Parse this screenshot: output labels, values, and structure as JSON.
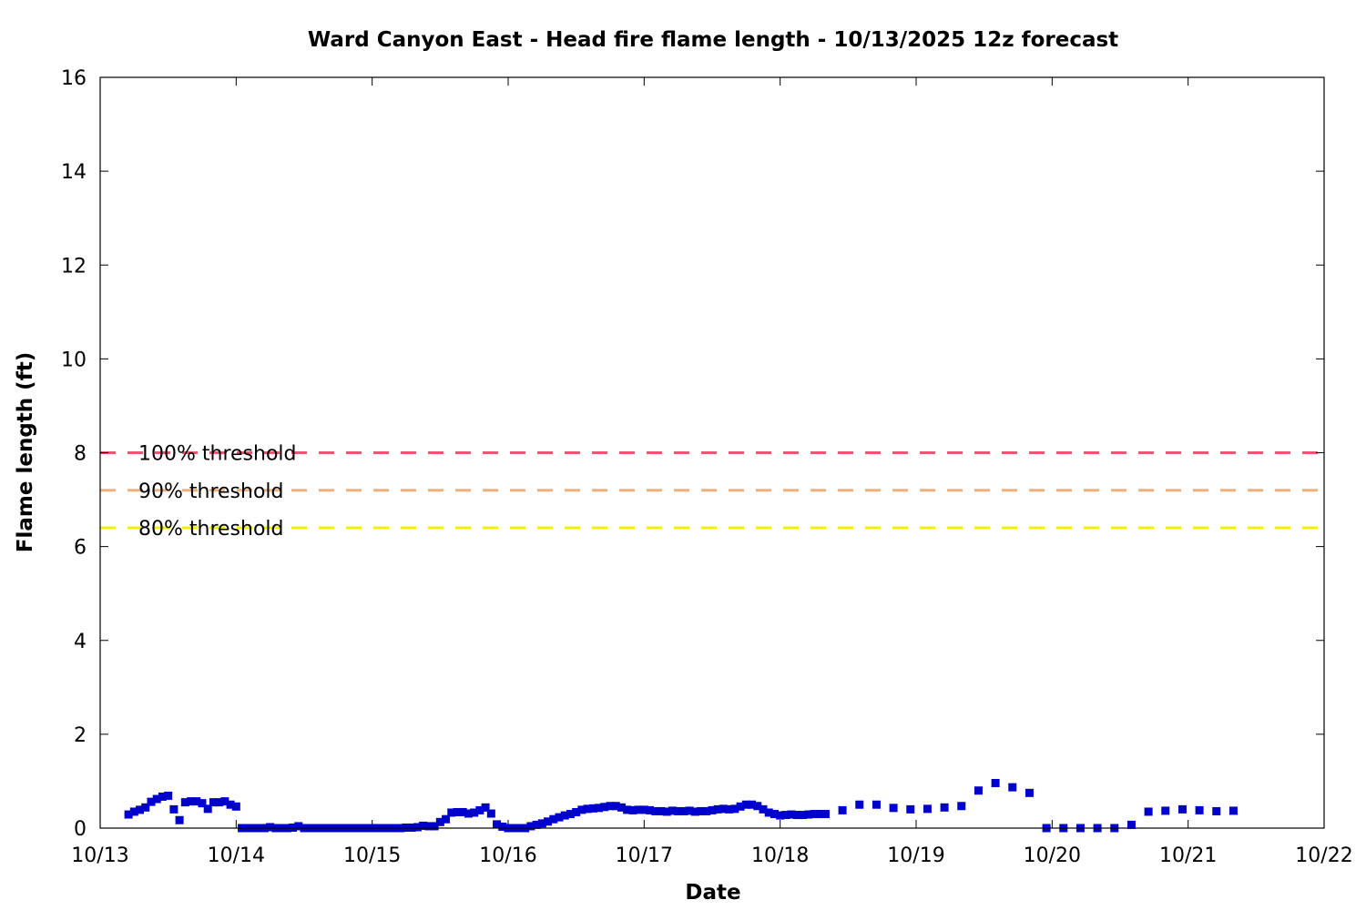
{
  "chart_data": {
    "type": "scatter",
    "title": "Ward Canyon East - Head fire flame length - 10/13/2025 12z forecast",
    "xlabel": "Date",
    "ylabel": "Flame length (ft)",
    "xlim": [
      "10/13",
      "10/22"
    ],
    "ylim": [
      0,
      16
    ],
    "x_ticks": [
      "10/13",
      "10/14",
      "10/15",
      "10/16",
      "10/17",
      "10/18",
      "10/19",
      "10/20",
      "10/21",
      "10/22"
    ],
    "y_ticks": [
      0,
      2,
      4,
      6,
      8,
      10,
      12,
      14,
      16
    ],
    "grid": false,
    "thresholds": [
      {
        "label": "100% threshold",
        "value": 8.0,
        "color": "#e05b73"
      },
      {
        "label": "90% threshold",
        "value": 7.2,
        "color": "#f0b07a"
      },
      {
        "label": "80% threshold",
        "value": 6.4,
        "color": "#f0f000"
      }
    ],
    "series": [
      {
        "color": "#0000cc",
        "marker": "square",
        "points": [
          [
            "10/13 05:00",
            0.29
          ],
          [
            "10/13 06:00",
            0.35
          ],
          [
            "10/13 07:00",
            0.39
          ],
          [
            "10/13 08:00",
            0.44
          ],
          [
            "10/13 09:00",
            0.56
          ],
          [
            "10/13 10:00",
            0.62
          ],
          [
            "10/13 11:00",
            0.67
          ],
          [
            "10/13 12:00",
            0.69
          ],
          [
            "10/13 13:00",
            0.4
          ],
          [
            "10/13 14:00",
            0.17
          ],
          [
            "10/13 15:00",
            0.55
          ],
          [
            "10/13 16:00",
            0.57
          ],
          [
            "10/13 17:00",
            0.57
          ],
          [
            "10/13 18:00",
            0.53
          ],
          [
            "10/13 19:00",
            0.41
          ],
          [
            "10/13 20:00",
            0.55
          ],
          [
            "10/13 21:00",
            0.55
          ],
          [
            "10/13 22:00",
            0.57
          ],
          [
            "10/13 23:00",
            0.5
          ],
          [
            "10/14 00:00",
            0.46
          ],
          [
            "10/14 01:00",
            0.0
          ],
          [
            "10/14 02:00",
            0.0
          ],
          [
            "10/14 03:00",
            0.0
          ],
          [
            "10/14 04:00",
            0.0
          ],
          [
            "10/14 05:00",
            0.0
          ],
          [
            "10/14 06:00",
            0.02
          ],
          [
            "10/14 07:00",
            0.0
          ],
          [
            "10/14 08:00",
            0.0
          ],
          [
            "10/14 09:00",
            0.0
          ],
          [
            "10/14 10:00",
            0.01
          ],
          [
            "10/14 11:00",
            0.04
          ],
          [
            "10/14 12:00",
            0.0
          ],
          [
            "10/14 13:00",
            0.0
          ],
          [
            "10/14 14:00",
            0.0
          ],
          [
            "10/14 15:00",
            0.0
          ],
          [
            "10/14 16:00",
            0.0
          ],
          [
            "10/14 17:00",
            0.0
          ],
          [
            "10/14 18:00",
            0.0
          ],
          [
            "10/14 19:00",
            0.0
          ],
          [
            "10/14 20:00",
            0.0
          ],
          [
            "10/14 21:00",
            0.0
          ],
          [
            "10/14 22:00",
            0.0
          ],
          [
            "10/14 23:00",
            0.0
          ],
          [
            "10/15 00:00",
            0.0
          ],
          [
            "10/15 01:00",
            0.0
          ],
          [
            "10/15 02:00",
            0.0
          ],
          [
            "10/15 03:00",
            0.0
          ],
          [
            "10/15 04:00",
            0.0
          ],
          [
            "10/15 05:00",
            0.0
          ],
          [
            "10/15 06:00",
            0.01
          ],
          [
            "10/15 07:00",
            0.01
          ],
          [
            "10/15 08:00",
            0.02
          ],
          [
            "10/15 09:00",
            0.05
          ],
          [
            "10/15 10:00",
            0.04
          ],
          [
            "10/15 11:00",
            0.04
          ],
          [
            "10/15 12:00",
            0.13
          ],
          [
            "10/15 13:00",
            0.19
          ],
          [
            "10/15 14:00",
            0.33
          ],
          [
            "10/15 15:00",
            0.34
          ],
          [
            "10/15 16:00",
            0.34
          ],
          [
            "10/15 17:00",
            0.31
          ],
          [
            "10/15 18:00",
            0.33
          ],
          [
            "10/15 19:00",
            0.38
          ],
          [
            "10/15 20:00",
            0.44
          ],
          [
            "10/15 21:00",
            0.31
          ],
          [
            "10/15 22:00",
            0.08
          ],
          [
            "10/15 23:00",
            0.03
          ],
          [
            "10/16 00:00",
            0.0
          ],
          [
            "10/16 01:00",
            0.0
          ],
          [
            "10/16 02:00",
            0.0
          ],
          [
            "10/16 03:00",
            0.0
          ],
          [
            "10/16 04:00",
            0.04
          ],
          [
            "10/16 05:00",
            0.07
          ],
          [
            "10/16 06:00",
            0.1
          ],
          [
            "10/16 07:00",
            0.14
          ],
          [
            "10/16 08:00",
            0.19
          ],
          [
            "10/16 09:00",
            0.23
          ],
          [
            "10/16 10:00",
            0.27
          ],
          [
            "10/16 11:00",
            0.3
          ],
          [
            "10/16 12:00",
            0.34
          ],
          [
            "10/16 13:00",
            0.39
          ],
          [
            "10/16 14:00",
            0.41
          ],
          [
            "10/16 15:00",
            0.42
          ],
          [
            "10/16 16:00",
            0.43
          ],
          [
            "10/16 17:00",
            0.45
          ],
          [
            "10/16 18:00",
            0.47
          ],
          [
            "10/16 19:00",
            0.47
          ],
          [
            "10/16 20:00",
            0.44
          ],
          [
            "10/16 21:00",
            0.39
          ],
          [
            "10/16 22:00",
            0.38
          ],
          [
            "10/16 23:00",
            0.39
          ],
          [
            "10/17 00:00",
            0.39
          ],
          [
            "10/17 01:00",
            0.38
          ],
          [
            "10/17 02:00",
            0.36
          ],
          [
            "10/17 03:00",
            0.36
          ],
          [
            "10/17 04:00",
            0.35
          ],
          [
            "10/17 05:00",
            0.37
          ],
          [
            "10/17 06:00",
            0.36
          ],
          [
            "10/17 07:00",
            0.36
          ],
          [
            "10/17 08:00",
            0.37
          ],
          [
            "10/17 09:00",
            0.35
          ],
          [
            "10/17 10:00",
            0.36
          ],
          [
            "10/17 11:00",
            0.36
          ],
          [
            "10/17 12:00",
            0.38
          ],
          [
            "10/17 13:00",
            0.4
          ],
          [
            "10/17 14:00",
            0.41
          ],
          [
            "10/17 15:00",
            0.4
          ],
          [
            "10/17 16:00",
            0.41
          ],
          [
            "10/17 17:00",
            0.46
          ],
          [
            "10/17 18:00",
            0.5
          ],
          [
            "10/17 19:00",
            0.5
          ],
          [
            "10/17 20:00",
            0.47
          ],
          [
            "10/17 21:00",
            0.4
          ],
          [
            "10/17 22:00",
            0.33
          ],
          [
            "10/17 23:00",
            0.3
          ],
          [
            "10/18 00:00",
            0.27
          ],
          [
            "10/18 01:00",
            0.28
          ],
          [
            "10/18 02:00",
            0.29
          ],
          [
            "10/18 03:00",
            0.28
          ],
          [
            "10/18 04:00",
            0.28
          ],
          [
            "10/18 05:00",
            0.29
          ],
          [
            "10/18 06:00",
            0.3
          ],
          [
            "10/18 07:00",
            0.3
          ],
          [
            "10/18 08:00",
            0.3
          ],
          [
            "10/18 11:00",
            0.38
          ],
          [
            "10/18 14:00",
            0.5
          ],
          [
            "10/18 17:00",
            0.5
          ],
          [
            "10/18 20:00",
            0.43
          ],
          [
            "10/18 23:00",
            0.4
          ],
          [
            "10/19 02:00",
            0.41
          ],
          [
            "10/19 05:00",
            0.44
          ],
          [
            "10/19 08:00",
            0.47
          ],
          [
            "10/19 11:00",
            0.8
          ],
          [
            "10/19 14:00",
            0.96
          ],
          [
            "10/19 17:00",
            0.87
          ],
          [
            "10/19 20:00",
            0.75
          ],
          [
            "10/19 23:00",
            0.0
          ],
          [
            "10/20 02:00",
            0.0
          ],
          [
            "10/20 05:00",
            0.0
          ],
          [
            "10/20 08:00",
            0.0
          ],
          [
            "10/20 11:00",
            0.0
          ],
          [
            "10/20 14:00",
            0.07
          ],
          [
            "10/20 17:00",
            0.35
          ],
          [
            "10/20 20:00",
            0.37
          ],
          [
            "10/20 23:00",
            0.4
          ],
          [
            "10/21 02:00",
            0.38
          ],
          [
            "10/21 05:00",
            0.36
          ],
          [
            "10/21 08:00",
            0.37
          ]
        ]
      }
    ]
  }
}
